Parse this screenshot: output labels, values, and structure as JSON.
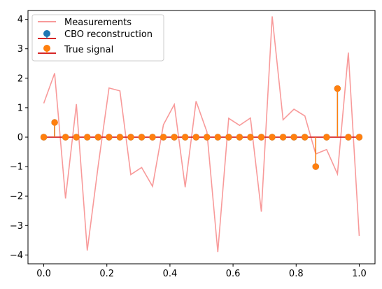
{
  "chart_data": {
    "type": "line",
    "x": [
      0.0,
      0.0345,
      0.069,
      0.1034,
      0.1379,
      0.1724,
      0.2069,
      0.2414,
      0.2759,
      0.3103,
      0.3448,
      0.3793,
      0.4138,
      0.4483,
      0.4828,
      0.5172,
      0.5517,
      0.5862,
      0.6207,
      0.6552,
      0.6897,
      0.7241,
      0.7586,
      0.7931,
      0.8276,
      0.8621,
      0.8966,
      0.931,
      0.9655,
      1.0
    ],
    "series": [
      {
        "name": "Measurements",
        "kind": "line",
        "color": "#f89a9a",
        "values": [
          1.15,
          2.17,
          -2.08,
          1.12,
          -3.85,
          -0.98,
          1.67,
          1.57,
          -1.27,
          -1.03,
          -1.67,
          0.42,
          1.11,
          -1.7,
          1.22,
          0.18,
          -3.9,
          0.64,
          0.4,
          0.65,
          -2.53,
          4.1,
          0.59,
          0.95,
          0.72,
          -0.57,
          -0.42,
          -1.25,
          2.87,
          -3.35
        ]
      },
      {
        "name": "CBO reconstruction",
        "kind": "stem",
        "color": "#1f77b4",
        "values": [
          0,
          0.5,
          0,
          0,
          0,
          0,
          0,
          0,
          0,
          0,
          0,
          0,
          0,
          0,
          0,
          0,
          0,
          0,
          0,
          0,
          0,
          0,
          0,
          0,
          0,
          -1.0,
          0,
          1.65,
          0,
          0
        ]
      },
      {
        "name": "True signal",
        "kind": "stem",
        "color": "#ff7f0e",
        "values": [
          0,
          0.5,
          0,
          0,
          0,
          0,
          0,
          0,
          0,
          0,
          0,
          0,
          0,
          0,
          0,
          0,
          0,
          0,
          0,
          0,
          0,
          0,
          0,
          0,
          0,
          -1.0,
          0,
          1.65,
          0,
          0
        ]
      }
    ],
    "baseline_color": "#d62728",
    "xticks": [
      0.0,
      0.2,
      0.4,
      0.6,
      0.8,
      1.0
    ],
    "xtick_labels": [
      "0.0",
      "0.2",
      "0.4",
      "0.6",
      "0.8",
      "1.0"
    ],
    "yticks": [
      -4,
      -3,
      -2,
      -1,
      0,
      1,
      2,
      3,
      4
    ],
    "ytick_labels": [
      "−4",
      "−3",
      "−2",
      "−1",
      "0",
      "1",
      "2",
      "3",
      "4"
    ],
    "xlim": [
      -0.05,
      1.05
    ],
    "ylim": [
      -4.3,
      4.3
    ],
    "grid": false,
    "legend_position": "upper left",
    "title": "",
    "xlabel": "",
    "ylabel": ""
  }
}
